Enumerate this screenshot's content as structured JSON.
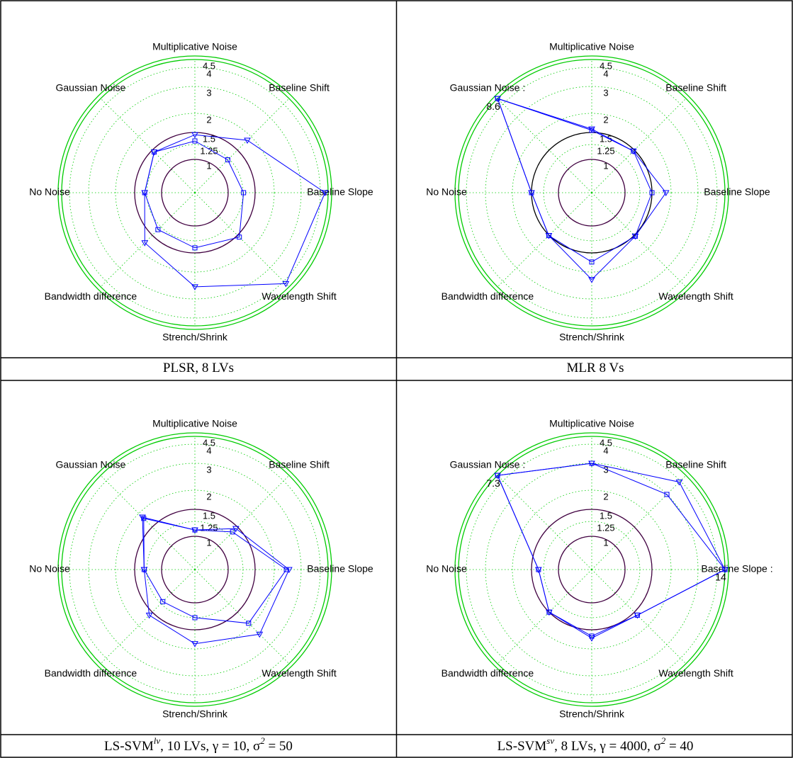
{
  "chart_data": [
    {
      "type": "radar",
      "caption": [
        "PLSR, 8 LVs"
      ],
      "categories": [
        "Multiplicative Noise",
        "Baseline Shift",
        "Baseline Slope",
        "Wavelength Shift",
        "Strench/Shrink",
        "Bandwidth difference",
        "No Noise",
        "Gaussian Noise"
      ],
      "rscale": "log",
      "rlim": [
        1,
        4.5
      ],
      "rticks": [
        1,
        1.25,
        1.5,
        2,
        3,
        4,
        4.5
      ],
      "grid": true,
      "circles": [
        {
          "value": 1,
          "color": "#400040"
        },
        {
          "value": 1.5,
          "color": "#400040"
        },
        {
          "value": 4.5,
          "color": "#00cc00"
        }
      ],
      "series": [
        {
          "marker": "square",
          "color": "#0000ff",
          "values": [
            1.32,
            1.22,
            1.26,
            1.56,
            1.39,
            1.33,
            1.29,
            1.44
          ]
        },
        {
          "marker": "triangle",
          "color": "#0000ff",
          "values": [
            1.45,
            1.85,
            4.3,
            4.2,
            2.5,
            1.76,
            1.29,
            1.44
          ]
        }
      ]
    },
    {
      "type": "radar",
      "caption": [
        "MLR 8 Vs"
      ],
      "categories": [
        "Multiplicative Noise",
        "Baseline Shift",
        "Baseline Slope",
        "Wavelength Shift",
        "Strench/Shrink",
        "Bandwidth difference",
        "No Noise",
        "Gaussian Noise :"
      ],
      "rscale": "log",
      "rlim": [
        1,
        4.5
      ],
      "rticks": [
        1,
        1.25,
        1.5,
        2,
        3,
        4,
        4.5
      ],
      "grid": true,
      "circles": [
        {
          "value": 1,
          "color": "#400040"
        },
        {
          "value": 1.5,
          "color": "#000000"
        },
        {
          "value": 4.5,
          "color": "#00cc00"
        }
      ],
      "series": [
        {
          "marker": "square",
          "color": "#0000ff",
          "values": [
            1.55,
            1.47,
            1.5,
            1.53,
            1.72,
            1.51,
            1.5,
            8.6
          ]
        },
        {
          "marker": "triangle",
          "color": "#0000ff",
          "values": [
            1.58,
            1.47,
            1.85,
            1.53,
            2.24,
            1.51,
            1.5,
            8.6
          ],
          "value_labels": [
            null,
            null,
            null,
            null,
            null,
            null,
            null,
            "8.6"
          ]
        }
      ]
    },
    {
      "type": "radar",
      "caption": [
        "LS-SVM",
        "lv",
        ", 10 LVs, γ = 10, σ",
        "2",
        " = 50"
      ],
      "categories": [
        "Multiplicative Noise",
        "Baseline Shift",
        "Baseline Slope",
        "Wavelength Shift",
        "Strench/Shrink",
        "Bandwidth difference",
        "No Noise",
        "Gaussian Noise"
      ],
      "rscale": "log",
      "rlim": [
        1,
        4.5
      ],
      "rticks": [
        1,
        1.25,
        1.5,
        2,
        3,
        4,
        4.5
      ],
      "grid": true,
      "circles": [
        {
          "value": 1,
          "color": "#400040"
        },
        {
          "value": 1.5,
          "color": "#400040"
        },
        {
          "value": 4.5,
          "color": "#00cc00"
        }
      ],
      "series": [
        {
          "marker": "square",
          "color": "#0000ff",
          "values": [
            1.1,
            1.35,
            2.4,
            1.9,
            1.25,
            1.2,
            1.3,
            1.8
          ]
        },
        {
          "marker": "triangle",
          "color": "#0000ff",
          "values": [
            1.1,
            1.45,
            2.5,
            2.4,
            1.85,
            1.6,
            1.3,
            1.85
          ]
        }
      ]
    },
    {
      "type": "radar",
      "caption": [
        "LS-SVM",
        "sv",
        ", 8 LVs, γ = 4000, σ",
        "2",
        " = 40"
      ],
      "categories": [
        "Multiplicative Noise",
        "Baseline Shift",
        "Baseline Slope :",
        "Wavelength Shift",
        "Strench/Shrink",
        "Bandwidth difference",
        "No Noise",
        "Gaussian Noise :"
      ],
      "rscale": "log",
      "rlim": [
        1,
        4.5
      ],
      "rticks": [
        1,
        1.25,
        1.5,
        2,
        3,
        4,
        4.5
      ],
      "grid": true,
      "circles": [
        {
          "value": 1,
          "color": "#400040"
        },
        {
          "value": 1.5,
          "color": "#400040"
        },
        {
          "value": 4.5,
          "color": "#00cc00"
        }
      ],
      "series": [
        {
          "marker": "square",
          "color": "#0000ff",
          "values": [
            3.0,
            3.0,
            14,
            1.6,
            1.65,
            1.5,
            1.35,
            7.3
          ]
        },
        {
          "marker": "triangle",
          "color": "#0000ff",
          "values": [
            3.0,
            3.9,
            14,
            1.6,
            1.7,
            1.5,
            1.35,
            7.3
          ],
          "value_labels": [
            null,
            null,
            "14",
            null,
            null,
            null,
            null,
            "7.3"
          ]
        }
      ]
    }
  ]
}
